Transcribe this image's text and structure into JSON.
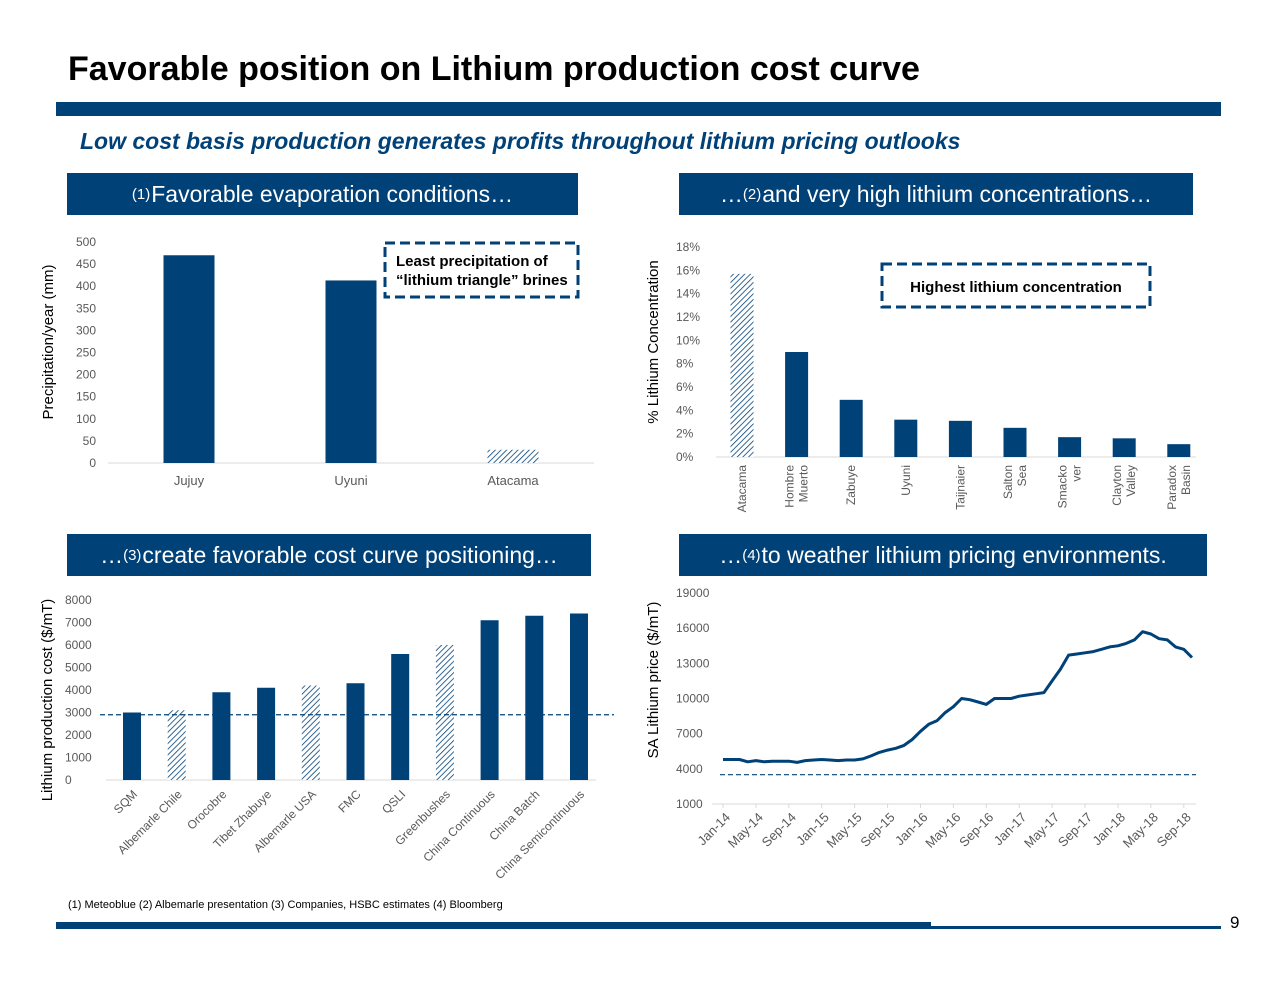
{
  "title": "Favorable position on Lithium production cost curve",
  "subtitle": "Low cost basis production generates profits throughout lithium pricing outlooks",
  "panels": {
    "p1": {
      "prefix": "",
      "sup": "(1)",
      "text": "Favorable evaporation conditions…"
    },
    "p2": {
      "prefix": "…",
      "sup": "(2)",
      "text": "and very high lithium concentrations…"
    },
    "p3": {
      "prefix": "…",
      "sup": "(3)",
      "text": "create favorable cost curve positioning…"
    },
    "p4": {
      "prefix": "…",
      "sup": "(4)",
      "text": "to weather lithium pricing environments."
    }
  },
  "colors": {
    "brand": "#004178",
    "axis": "#d9d9d9",
    "tick_text": "#595959"
  },
  "chart_data": [
    {
      "id": "precipitation",
      "type": "bar",
      "categories": [
        "Jujuy",
        "Uyuni",
        "Atacama"
      ],
      "values": [
        470,
        413,
        30
      ],
      "hatched": [
        false,
        false,
        true
      ],
      "ylabel": "Precipitation/year (mm)",
      "ylim": [
        0,
        500
      ],
      "yticks": [
        0,
        50,
        100,
        150,
        200,
        250,
        300,
        350,
        400,
        450,
        500
      ],
      "annotation": [
        "Least precipitation of",
        "“lithium triangle” brines"
      ],
      "grid": false
    },
    {
      "id": "concentration",
      "type": "bar",
      "categories": [
        [
          "Atacama"
        ],
        [
          "Hombre",
          "Muerto"
        ],
        [
          "Zabuye"
        ],
        [
          "Uyuni"
        ],
        [
          "Taijnaier"
        ],
        [
          "Salton",
          "Sea"
        ],
        [
          "Smacko",
          "ver"
        ],
        [
          "Clayton",
          "Valley"
        ],
        [
          "Paradox",
          "Basin"
        ]
      ],
      "values": [
        15.7,
        9.0,
        4.9,
        3.2,
        3.1,
        2.5,
        1.7,
        1.6,
        1.1
      ],
      "hatched": [
        true,
        false,
        false,
        false,
        false,
        false,
        false,
        false,
        false
      ],
      "ylabel": "% Lithium Concentration",
      "ylim": [
        0,
        18
      ],
      "yticks": [
        0,
        2,
        4,
        6,
        8,
        10,
        12,
        14,
        16,
        18
      ],
      "ytick_labels": [
        "0%",
        "2%",
        "4%",
        "6%",
        "8%",
        "10%",
        "12%",
        "14%",
        "16%",
        "18%"
      ],
      "annotation": [
        "Highest lithium concentration"
      ],
      "grid": false
    },
    {
      "id": "cost_curve",
      "type": "bar",
      "categories": [
        "SQM",
        "Albemarle Chile",
        "Orocobre",
        "Tibet Zhabuye",
        "Albemarle USA",
        "FMC",
        "QSLI",
        "Greenbushes",
        "China Continuous",
        "China Batch",
        "China Semicontinuous"
      ],
      "values": [
        3000,
        3100,
        3900,
        4100,
        4200,
        4300,
        5600,
        6000,
        7100,
        7300,
        7400
      ],
      "hatched": [
        false,
        true,
        false,
        false,
        true,
        false,
        false,
        true,
        false,
        false,
        false
      ],
      "ylabel": "Lithium production cost ($/mT)",
      "ylim": [
        0,
        8000
      ],
      "yticks": [
        0,
        1000,
        2000,
        3000,
        4000,
        5000,
        6000,
        7000,
        8000
      ],
      "reference_line": 2900,
      "grid": false
    },
    {
      "id": "lithium_price",
      "type": "line",
      "x": [
        "Jan-14",
        "Feb-14",
        "Mar-14",
        "Apr-14",
        "May-14",
        "Jun-14",
        "Jul-14",
        "Aug-14",
        "Sep-14",
        "Oct-14",
        "Nov-14",
        "Dec-14",
        "Jan-15",
        "Feb-15",
        "Mar-15",
        "Apr-15",
        "May-15",
        "Jun-15",
        "Jul-15",
        "Aug-15",
        "Sep-15",
        "Oct-15",
        "Nov-15",
        "Dec-15",
        "Jan-16",
        "Feb-16",
        "Mar-16",
        "Apr-16",
        "May-16",
        "Jun-16",
        "Jul-16",
        "Aug-16",
        "Sep-16",
        "Oct-16",
        "Nov-16",
        "Dec-16",
        "Jan-17",
        "Feb-17",
        "Mar-17",
        "Apr-17",
        "May-17",
        "Jun-17",
        "Jul-17",
        "Aug-17",
        "Sep-17",
        "Oct-17",
        "Nov-17",
        "Dec-17",
        "Jan-18",
        "Feb-18",
        "Mar-18",
        "Apr-18",
        "May-18",
        "Jun-18",
        "Jul-18",
        "Aug-18",
        "Sep-18",
        "Oct-18"
      ],
      "xtick_labels": [
        "Jan-14",
        "May-14",
        "Sep-14",
        "Jan-15",
        "May-15",
        "Sep-15",
        "Jan-16",
        "May-16",
        "Sep-16",
        "Jan-17",
        "May-17",
        "Sep-17",
        "Jan-18",
        "May-18",
        "Sep-18"
      ],
      "values": [
        4800,
        4800,
        4800,
        4600,
        4700,
        4600,
        4650,
        4650,
        4650,
        4550,
        4700,
        4750,
        4800,
        4750,
        4700,
        4750,
        4750,
        4850,
        5100,
        5400,
        5600,
        5750,
        6000,
        6500,
        7200,
        7800,
        8100,
        8800,
        9300,
        10000,
        9900,
        9700,
        9500,
        10000,
        10000,
        10000,
        10200,
        10300,
        10400,
        10500,
        11500,
        12500,
        13700,
        13800,
        13900,
        14000,
        14200,
        14400,
        14500,
        14700,
        15000,
        15700,
        15500,
        15100,
        15000,
        14400,
        14200,
        13500
      ],
      "ylabel": "SA Lithium price ($/mT)",
      "ylim": [
        1000,
        19000
      ],
      "yticks": [
        1000,
        4000,
        7000,
        10000,
        13000,
        16000,
        19000
      ],
      "reference_line": 3500,
      "grid": false
    }
  ],
  "footnote": "(1)    Meteoblue (2) Albemarle presentation (3) Companies, HSBC estimates (4) Bloomberg",
  "page_number": "9"
}
